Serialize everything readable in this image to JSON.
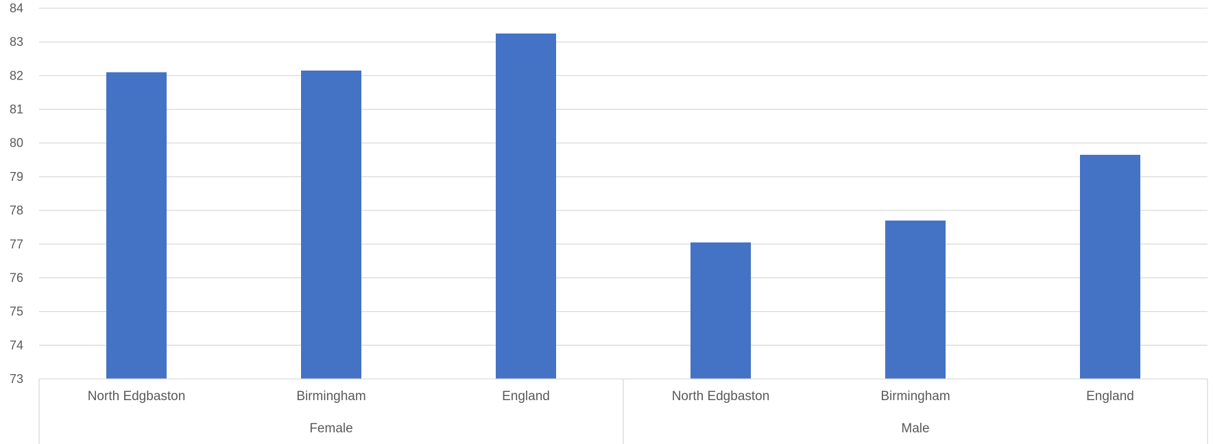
{
  "chart_data": {
    "type": "bar",
    "title": "",
    "xlabel": "",
    "ylabel": "",
    "ylim": [
      73,
      84
    ],
    "yticks": [
      73,
      74,
      75,
      76,
      77,
      78,
      79,
      80,
      81,
      82,
      83,
      84
    ],
    "grid": true,
    "legend": "none",
    "bar_color": "#4472C4",
    "groups": [
      {
        "name": "Female",
        "categories": [
          "North Edgbaston",
          "Birmingham",
          "England"
        ],
        "values": [
          82.1,
          82.15,
          83.25
        ]
      },
      {
        "name": "Male",
        "categories": [
          "North Edgbaston",
          "Birmingham",
          "England"
        ],
        "values": [
          77.05,
          77.7,
          79.65
        ]
      }
    ]
  }
}
